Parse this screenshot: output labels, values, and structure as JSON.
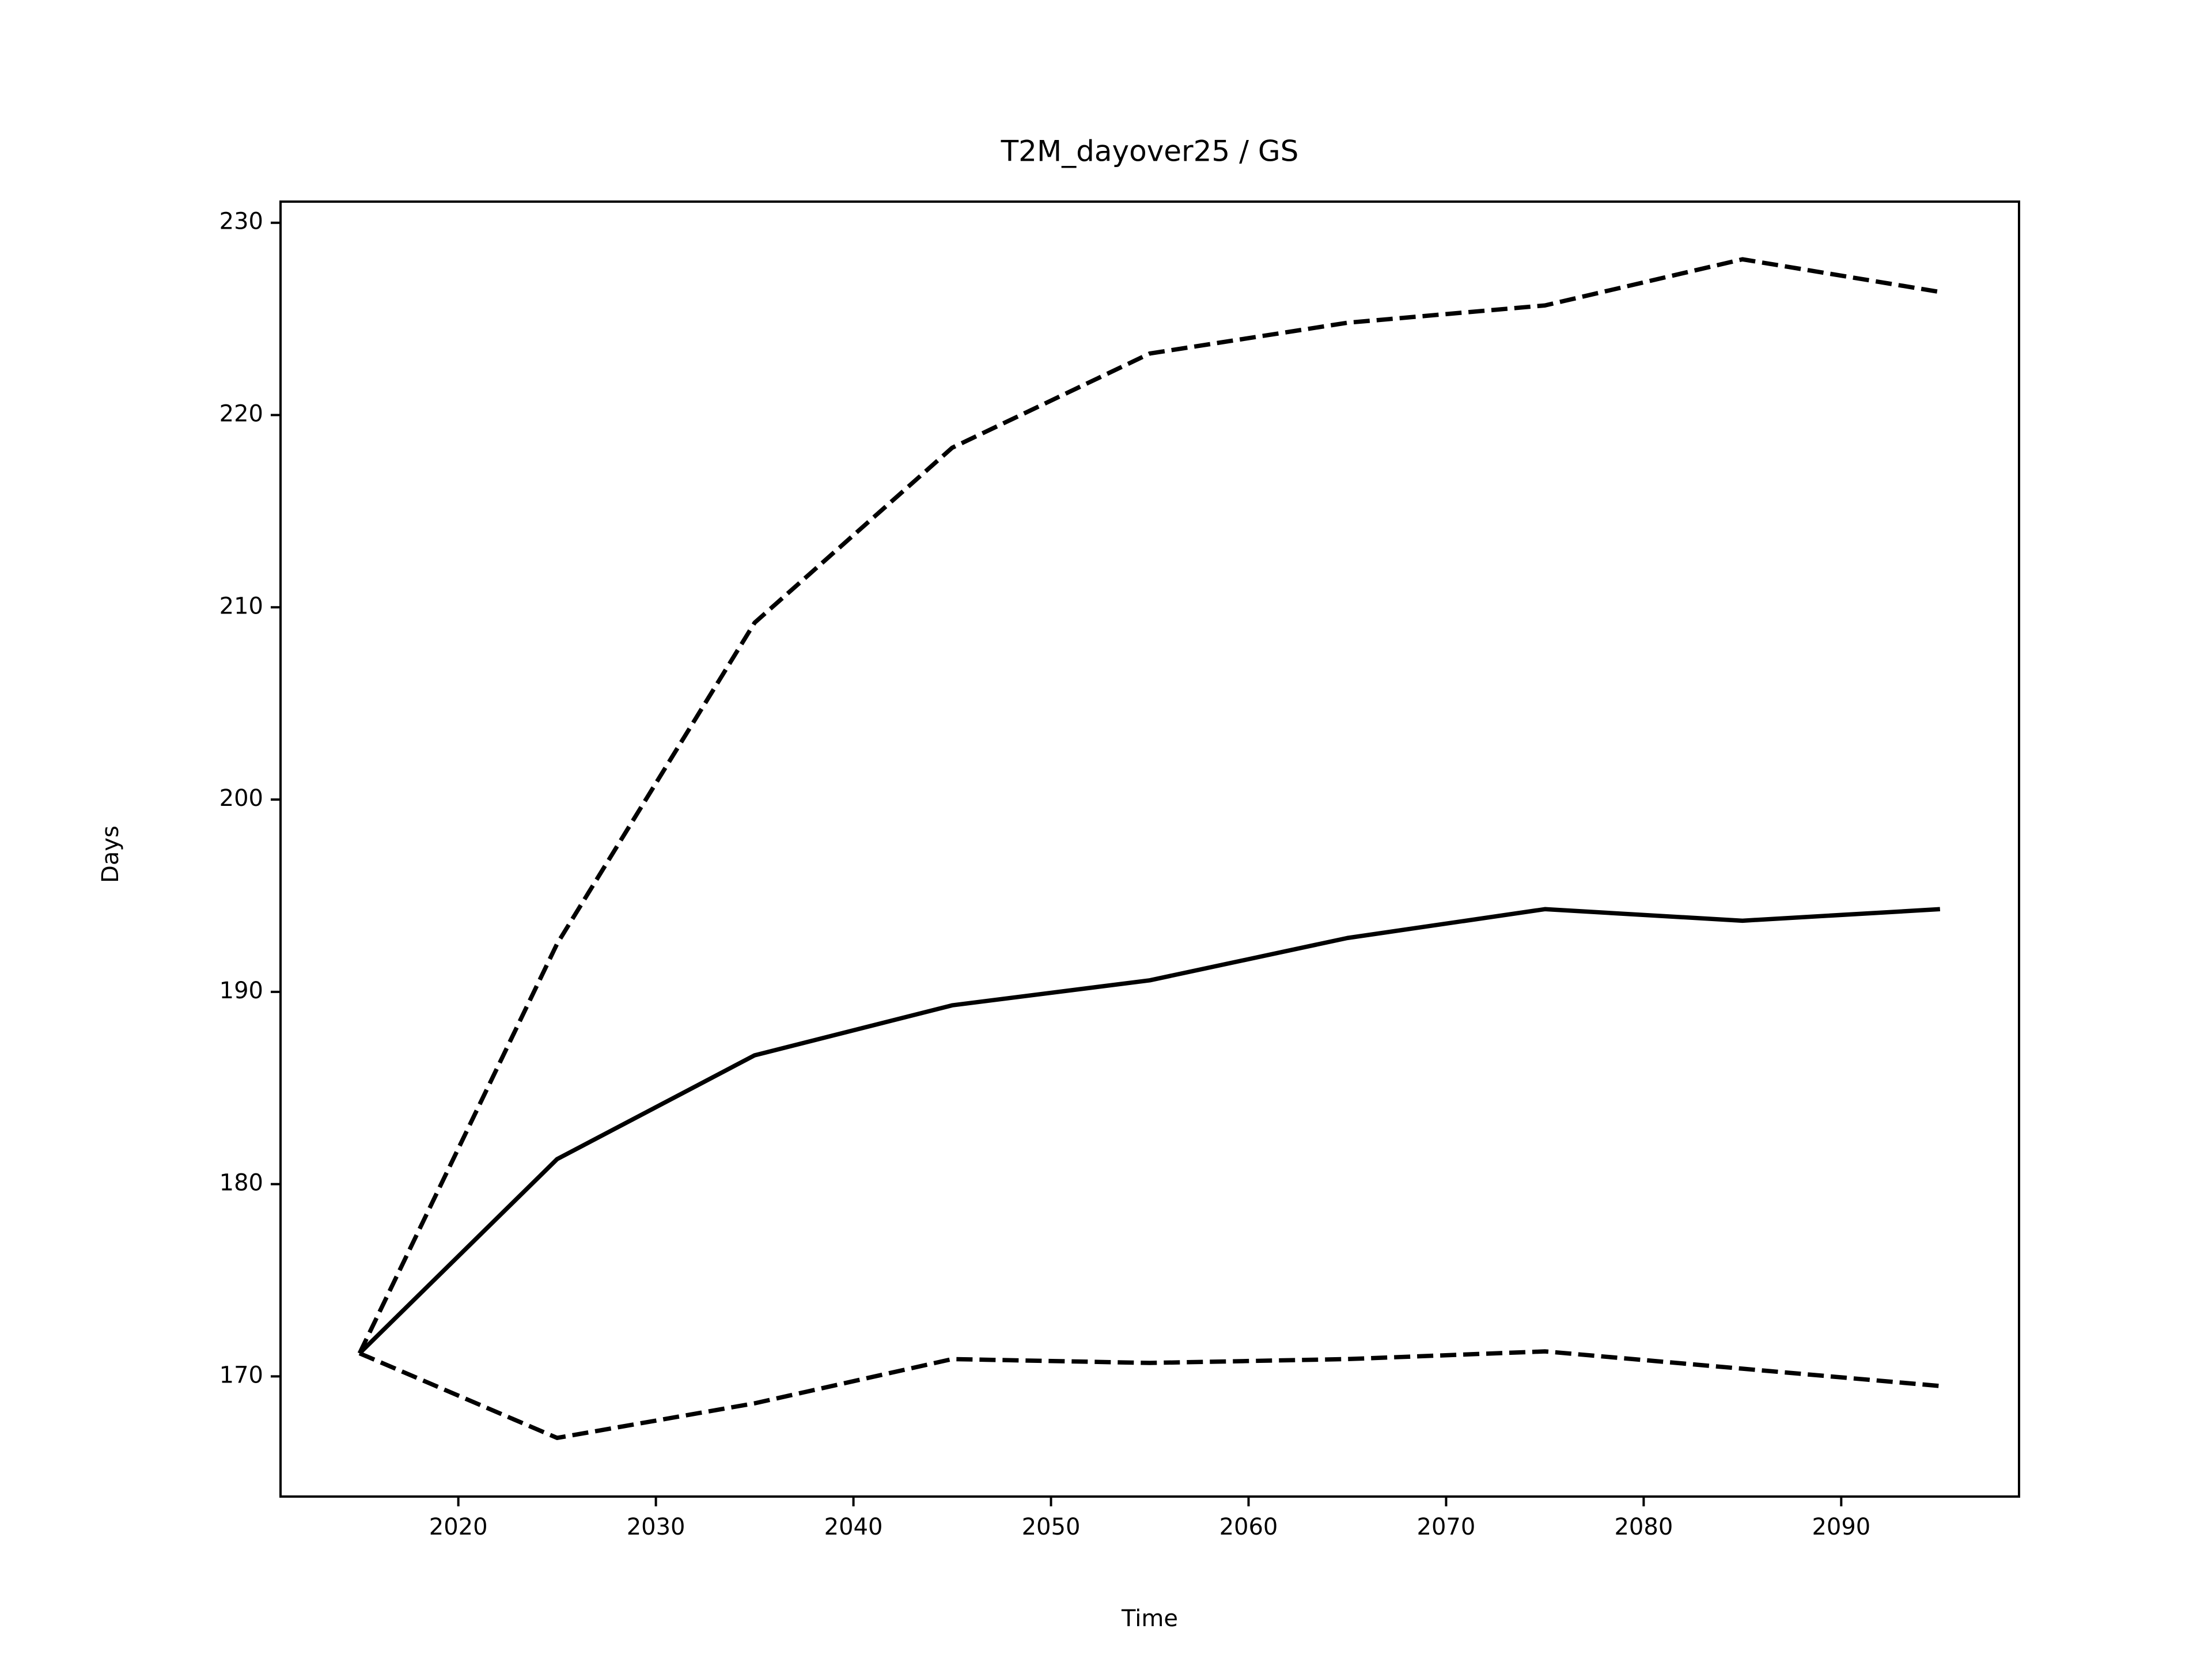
{
  "chart_data": {
    "type": "line",
    "title": "T2M_dayover25 / GS",
    "x_label": "Time",
    "y_label": "Days",
    "x": [
      2015,
      2025,
      2035,
      2045,
      2055,
      2065,
      2075,
      2085,
      2095
    ],
    "series": [
      {
        "color": "#000000",
        "linestyle": "solid",
        "values": [
          171.2,
          181.3,
          186.7,
          189.3,
          190.6,
          192.8,
          194.3,
          193.7,
          194.3
        ]
      },
      {
        "color": "#000000",
        "linestyle": "dashed",
        "values": [
          171.2,
          192.5,
          209.2,
          218.3,
          223.2,
          224.8,
          225.7,
          228.1,
          226.4
        ]
      },
      {
        "color": "#000000",
        "linestyle": "dashed",
        "values": [
          171.2,
          166.8,
          168.6,
          170.9,
          170.7,
          170.9,
          171.3,
          170.4,
          169.5
        ]
      }
    ],
    "xlim": [
      2011,
      2099
    ],
    "xticks": [
      2020,
      2030,
      2040,
      2050,
      2060,
      2070,
      2080,
      2090
    ],
    "ylim": [
      163.75,
      231.1
    ],
    "yticks": [
      170,
      180,
      190,
      200,
      210,
      220,
      230
    ],
    "grid": false
  }
}
